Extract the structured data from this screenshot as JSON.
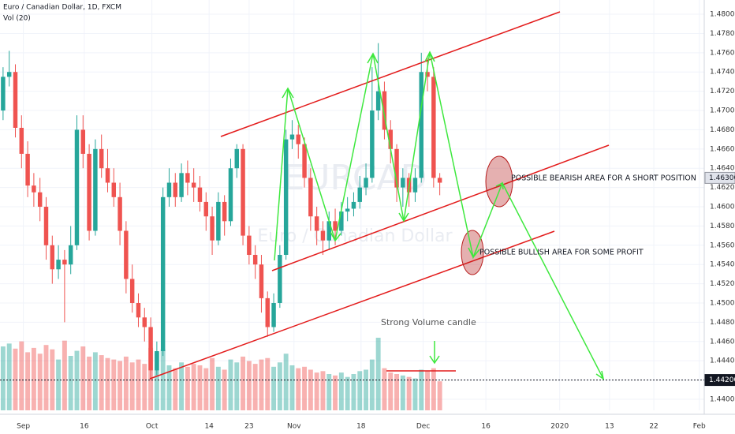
{
  "chart_data": {
    "type": "candlestick",
    "title": "Euro / Canadian Dollar, 1D, FXCM",
    "subtitle": "Vol (20)",
    "watermark": [
      "EURCAD",
      "Euro / Canadian Dollar"
    ],
    "up_color": "#26a69a",
    "down_color": "#ef5350",
    "x": [
      0,
      1,
      2,
      3,
      4,
      5,
      6,
      7,
      8,
      9,
      10,
      11,
      12,
      13,
      14,
      15,
      16,
      17,
      18,
      19,
      20,
      21,
      22,
      23,
      24,
      25,
      26,
      27,
      28,
      29,
      30,
      31,
      32,
      33,
      34,
      35,
      36,
      37,
      38,
      39,
      40,
      41,
      42,
      43,
      44,
      45,
      46,
      47,
      48,
      49,
      50,
      51,
      52,
      53,
      54,
      55,
      56,
      57,
      58,
      59,
      60,
      61,
      62,
      63,
      64,
      65,
      66,
      67,
      68,
      69,
      70,
      71
    ],
    "open": [
      1.47,
      1.4735,
      1.474,
      1.4682,
      1.4655,
      1.4622,
      1.4615,
      1.46,
      1.456,
      1.4535,
      1.4545,
      1.454,
      1.456,
      1.468,
      1.4655,
      1.4575,
      1.466,
      1.464,
      1.4625,
      1.461,
      1.4575,
      1.4525,
      1.45,
      1.4485,
      1.4475,
      1.443,
      1.445,
      1.461,
      1.4625,
      1.461,
      1.4635,
      1.4625,
      1.462,
      1.4605,
      1.459,
      1.4565,
      1.4605,
      1.4585,
      1.464,
      1.466,
      1.457,
      1.455,
      1.454,
      1.4505,
      1.4475,
      1.45,
      1.455,
      1.467,
      1.4675,
      1.4665,
      1.463,
      1.459,
      1.4575,
      1.4565,
      1.4585,
      1.4575,
      1.4595,
      1.4598,
      1.4605,
      1.462,
      1.463,
      1.47,
      1.472,
      1.468,
      1.466,
      1.462,
      1.463,
      1.4615,
      1.463,
      1.474,
      1.4735,
      1.463
    ],
    "high": [
      1.4745,
      1.4762,
      1.4748,
      1.4695,
      1.4668,
      1.4635,
      1.463,
      1.461,
      1.457,
      1.456,
      1.4555,
      1.458,
      1.4695,
      1.4695,
      1.4665,
      1.467,
      1.4675,
      1.466,
      1.464,
      1.4625,
      1.4585,
      1.454,
      1.451,
      1.4495,
      1.4485,
      1.446,
      1.462,
      1.464,
      1.4635,
      1.4645,
      1.4648,
      1.464,
      1.4632,
      1.4615,
      1.46,
      1.4615,
      1.4612,
      1.465,
      1.4665,
      1.4665,
      1.458,
      1.456,
      1.455,
      1.4512,
      1.451,
      1.456,
      1.468,
      1.469,
      1.4685,
      1.4672,
      1.464,
      1.46,
      1.4585,
      1.4595,
      1.4598,
      1.4605,
      1.461,
      1.4615,
      1.4632,
      1.4645,
      1.4745,
      1.477,
      1.473,
      1.469,
      1.4665,
      1.464,
      1.4635,
      1.464,
      1.476,
      1.4755,
      1.4745,
      1.4635
    ],
    "low": [
      1.469,
      1.4725,
      1.4672,
      1.464,
      1.461,
      1.46,
      1.4585,
      1.4545,
      1.452,
      1.4525,
      1.448,
      1.453,
      1.4555,
      1.464,
      1.4565,
      1.457,
      1.463,
      1.4615,
      1.46,
      1.456,
      1.451,
      1.449,
      1.4475,
      1.446,
      1.442,
      1.4425,
      1.4445,
      1.46,
      1.46,
      1.4605,
      1.4612,
      1.4605,
      1.4595,
      1.4575,
      1.455,
      1.456,
      1.457,
      1.458,
      1.463,
      1.456,
      1.454,
      1.4525,
      1.449,
      1.4465,
      1.447,
      1.4495,
      1.4545,
      1.466,
      1.465,
      1.462,
      1.4575,
      1.456,
      1.455,
      1.4555,
      1.456,
      1.457,
      1.4585,
      1.459,
      1.4598,
      1.4612,
      1.4625,
      1.469,
      1.467,
      1.4645,
      1.4605,
      1.46,
      1.46,
      1.4605,
      1.4625,
      1.472,
      1.462,
      1.4612
    ],
    "close": [
      1.4735,
      1.474,
      1.4682,
      1.4655,
      1.4622,
      1.4615,
      1.46,
      1.456,
      1.4535,
      1.4545,
      1.454,
      1.456,
      1.468,
      1.4655,
      1.4575,
      1.466,
      1.464,
      1.4625,
      1.461,
      1.4575,
      1.4525,
      1.45,
      1.4485,
      1.4475,
      1.443,
      1.445,
      1.461,
      1.4625,
      1.461,
      1.4635,
      1.4625,
      1.462,
      1.4605,
      1.459,
      1.4565,
      1.4605,
      1.4585,
      1.464,
      1.466,
      1.457,
      1.455,
      1.454,
      1.4505,
      1.4475,
      1.45,
      1.455,
      1.467,
      1.4675,
      1.4665,
      1.463,
      1.459,
      1.4575,
      1.4565,
      1.4585,
      1.4575,
      1.4595,
      1.4598,
      1.4605,
      1.462,
      1.463,
      1.47,
      1.472,
      1.468,
      1.466,
      1.462,
      1.463,
      1.4615,
      1.463,
      1.474,
      1.4735,
      1.463,
      1.4625
    ],
    "volume": [
      88,
      92,
      85,
      95,
      80,
      86,
      78,
      90,
      84,
      70,
      96,
      75,
      82,
      88,
      74,
      80,
      76,
      72,
      70,
      68,
      74,
      66,
      70,
      64,
      86,
      80,
      84,
      62,
      58,
      66,
      60,
      64,
      62,
      58,
      72,
      60,
      56,
      70,
      66,
      74,
      68,
      64,
      70,
      72,
      60,
      66,
      78,
      62,
      58,
      60,
      56,
      52,
      54,
      50,
      48,
      52,
      46,
      50,
      54,
      56,
      70,
      100,
      58,
      52,
      50,
      48,
      46,
      44,
      56,
      54,
      58,
      40
    ],
    "xlim": [
      -0.5,
      114
    ],
    "xticks": [
      {
        "value": 3.3,
        "label": "Sep"
      },
      {
        "value": 13.2,
        "label": "16"
      },
      {
        "value": 24.2,
        "label": "Oct"
      },
      {
        "value": 33.5,
        "label": "14"
      },
      {
        "value": 40,
        "label": "23"
      },
      {
        "value": 47.3,
        "label": "Nov"
      },
      {
        "value": 58.2,
        "label": "18"
      },
      {
        "value": 68.3,
        "label": "Dec"
      },
      {
        "value": 78.5,
        "label": "16"
      },
      {
        "value": 90.5,
        "label": "2020"
      },
      {
        "value": 98.6,
        "label": "13"
      },
      {
        "value": 105.8,
        "label": "22"
      },
      {
        "value": 113.2,
        "label": "Feb"
      }
    ],
    "ylim": [
      1.43885,
      1.48148
    ],
    "yticks": [
      {
        "value": 1.44,
        "label": "1.44000"
      },
      {
        "value": 1.442,
        "label": "1.44200"
      },
      {
        "value": 1.444,
        "label": "1.44400"
      },
      {
        "value": 1.446,
        "label": "1.44600"
      },
      {
        "value": 1.448,
        "label": "1.44800"
      },
      {
        "value": 1.45,
        "label": "1.45000"
      },
      {
        "value": 1.452,
        "label": "1.45200"
      },
      {
        "value": 1.454,
        "label": "1.45400"
      },
      {
        "value": 1.456,
        "label": "1.45600"
      },
      {
        "value": 1.458,
        "label": "1.45800"
      },
      {
        "value": 1.46,
        "label": "1.46000"
      },
      {
        "value": 1.462,
        "label": "1.46200"
      },
      {
        "value": 1.464,
        "label": "1.46400"
      },
      {
        "value": 1.466,
        "label": "1.46600"
      },
      {
        "value": 1.468,
        "label": "1.46800"
      },
      {
        "value": 1.47,
        "label": "1.47000"
      },
      {
        "value": 1.472,
        "label": "1.47200"
      },
      {
        "value": 1.474,
        "label": "1.47400"
      },
      {
        "value": 1.476,
        "label": "1.47600"
      },
      {
        "value": 1.478,
        "label": "1.47800"
      },
      {
        "value": 1.48,
        "label": "1.48000"
      }
    ],
    "grid": true,
    "price_labels": [
      {
        "value": 1.463,
        "label": "1.46300"
      },
      {
        "value": 1.442,
        "label": "1.44200"
      }
    ],
    "annotations": [
      "POSSIBLE BEARISH AREA FOR A SHORT POSITION",
      "POSSIBLE BULLISH AREA FOR SOME PROFIT",
      "Strong Volume candle"
    ]
  }
}
